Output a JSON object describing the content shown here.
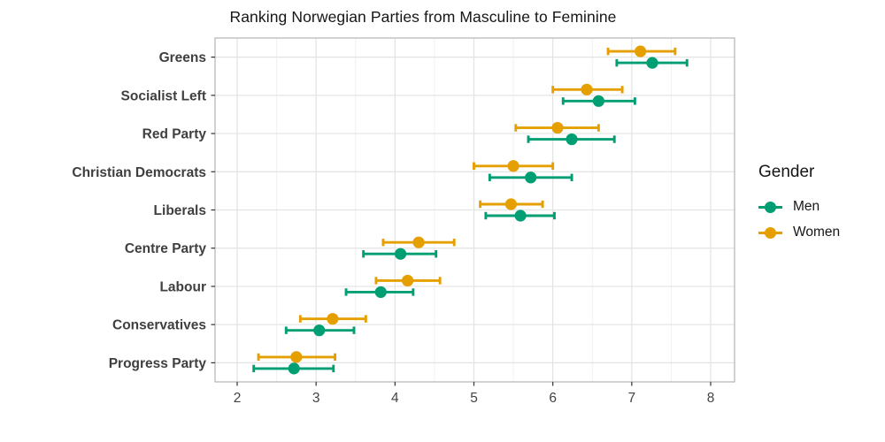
{
  "chart_data": {
    "type": "scatter",
    "subtype": "dot-plot-with-error-bars",
    "orientation": "horizontal",
    "title": "Ranking Norwegian Parties from Masculine to Feminine",
    "xlabel": "",
    "ylabel": "",
    "categories": [
      "Greens",
      "Socialist Left",
      "Red Party",
      "Christian Democrats",
      "Liberals",
      "Centre Party",
      "Labour",
      "Conservatives",
      "Progress Party"
    ],
    "x_ticks": [
      2,
      3,
      4,
      5,
      6,
      7,
      8
    ],
    "xlim": [
      1.72,
      8.3
    ],
    "grid": true,
    "series": [
      {
        "name": "Men",
        "color": "#009E73",
        "values": [
          7.26,
          6.58,
          6.24,
          5.72,
          5.59,
          4.07,
          3.82,
          3.04,
          2.72
        ],
        "ci_low": [
          6.81,
          6.13,
          5.69,
          5.2,
          5.15,
          3.6,
          3.38,
          2.62,
          2.21
        ],
        "ci_high": [
          7.7,
          7.04,
          6.78,
          6.24,
          6.02,
          4.52,
          4.23,
          3.48,
          3.22
        ]
      },
      {
        "name": "Women",
        "color": "#E69F00",
        "values": [
          7.11,
          6.43,
          6.06,
          5.5,
          5.47,
          4.3,
          4.16,
          3.21,
          2.75
        ],
        "ci_low": [
          6.7,
          6.0,
          5.53,
          5.0,
          5.08,
          3.85,
          3.76,
          2.8,
          2.27
        ],
        "ci_high": [
          7.55,
          6.88,
          6.58,
          6.0,
          5.87,
          4.75,
          4.57,
          3.63,
          3.24
        ]
      }
    ],
    "legend": {
      "title": "Gender",
      "position": "right"
    },
    "style_colors": {
      "panel_border": "#b3b3b3",
      "grid_major": "#e3e3e3",
      "grid_minor": "#f1f1f1",
      "tick_mark": "#333333"
    }
  }
}
